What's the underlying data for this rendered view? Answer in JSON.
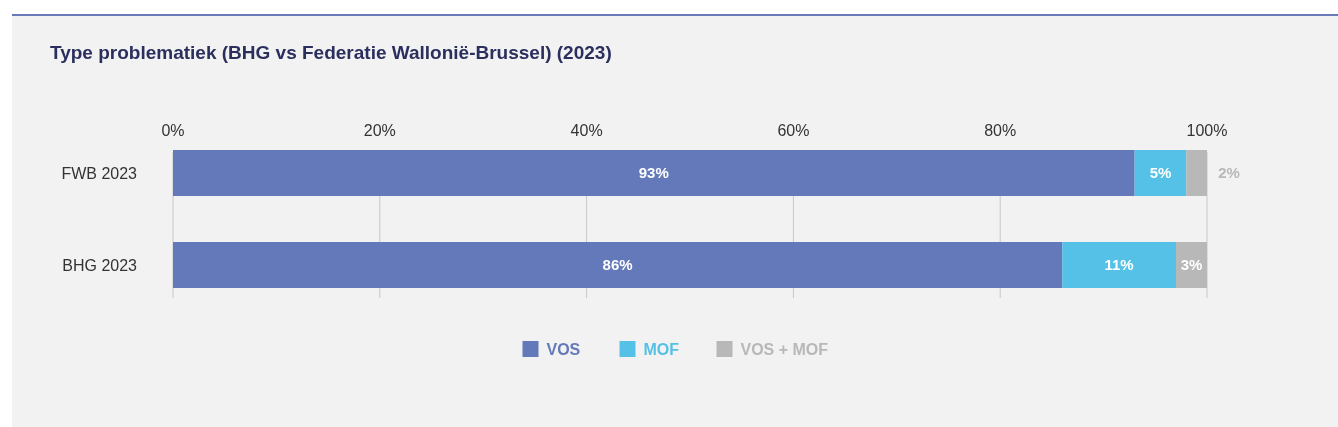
{
  "chart_data": {
    "type": "bar",
    "orientation": "horizontal",
    "stacked": true,
    "title": "Type problematiek (BHG vs Federatie Wallonië-Brussel) (2023)",
    "categories": [
      "FWB 2023",
      "BHG 2023"
    ],
    "series": [
      {
        "name": "VOS",
        "color": "#6479b9",
        "values": [
          93,
          86
        ],
        "value_labels": [
          "93%",
          "86%"
        ]
      },
      {
        "name": "MOF",
        "color": "#55c1e6",
        "values": [
          5,
          11
        ],
        "value_labels": [
          "5%",
          "11%"
        ]
      },
      {
        "name": "VOS + MOF",
        "color": "#b8b8b8",
        "values": [
          2,
          3
        ],
        "value_labels": [
          "2%",
          "3%"
        ]
      }
    ],
    "xlim": [
      0,
      100
    ],
    "xticks": [
      {
        "value": 0,
        "label": "0%"
      },
      {
        "value": 20,
        "label": "20%"
      },
      {
        "value": 40,
        "label": "40%"
      },
      {
        "value": 60,
        "label": "60%"
      },
      {
        "value": 80,
        "label": "80%"
      },
      {
        "value": 100,
        "label": "100%"
      }
    ],
    "grid": "x",
    "legend": "bottom"
  }
}
